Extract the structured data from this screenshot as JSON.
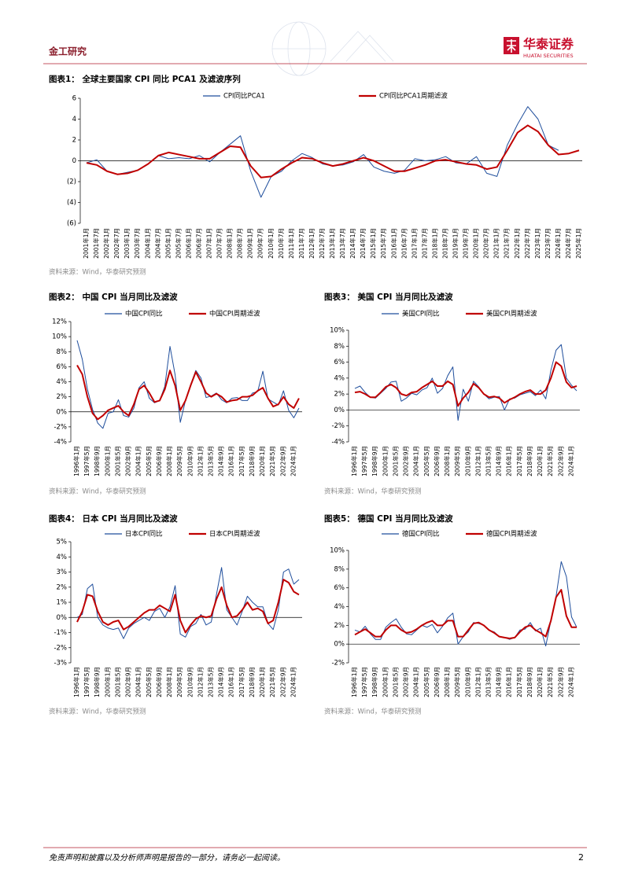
{
  "header": {
    "section": "金工研究",
    "logo_name": "华泰证券",
    "logo_sub": "HUATAI SECURITIES"
  },
  "footer": {
    "disclaimer": "免责声明和披露以及分析师声明是报告的一部分，请务必一起阅读。",
    "page": 2
  },
  "chart_data": [
    {
      "type": "line",
      "title": "图表1： 全球主要国家 CPI 同比 PCA1 及滤波序列",
      "source": "资料来源：Wind，华泰研究预测",
      "categories": [
        "2001年1月",
        "2001年7月",
        "2002年1月",
        "2002年7月",
        "2003年1月",
        "2003年7月",
        "2004年1月",
        "2004年7月",
        "2005年1月",
        "2005年7月",
        "2006年1月",
        "2006年7月",
        "2007年1月",
        "2007年7月",
        "2008年1月",
        "2008年7月",
        "2009年1月",
        "2009年7月",
        "2010年1月",
        "2010年7月",
        "2011年1月",
        "2011年7月",
        "2012年1月",
        "2012年7月",
        "2013年1月",
        "2013年7月",
        "2014年1月",
        "2014年7月",
        "2015年1月",
        "2015年7月",
        "2016年1月",
        "2016年7月",
        "2017年1月",
        "2017年7月",
        "2018年1月",
        "2018年7月",
        "2019年1月",
        "2019年7月",
        "2020年1月",
        "2020年7月",
        "2021年1月",
        "2021年7月",
        "2022年1月",
        "2022年7月",
        "2023年1月",
        "2023年7月",
        "2024年1月",
        "2024年7月",
        "2025年1月"
      ],
      "series": [
        {
          "name": "CPI同比PCA1",
          "color": "#1f4e9c",
          "values": [
            -0.2,
            0.1,
            -1.0,
            -1.3,
            -1.1,
            -0.9,
            -0.3,
            0.5,
            0.2,
            0.3,
            0.2,
            0.5,
            -0.1,
            0.8,
            1.6,
            2.4,
            -1.0,
            -3.5,
            -1.5,
            -1.0,
            0.0,
            0.7,
            0.3,
            -0.3,
            -0.5,
            -0.4,
            -0.1,
            0.6,
            -0.6,
            -1.0,
            -1.2,
            -0.9,
            0.2,
            0.0,
            0.1,
            0.4,
            -0.2,
            -0.3,
            0.4,
            -1.2,
            -1.5,
            1.5,
            3.5,
            5.2,
            4.0,
            1.5,
            1.0,
            null,
            null
          ]
        },
        {
          "name": "CPI同比PCA1周期滤波",
          "color": "#c00000",
          "values": [
            -0.2,
            -0.4,
            -1.0,
            -1.3,
            -1.2,
            -0.9,
            -0.3,
            0.5,
            0.8,
            0.6,
            0.4,
            0.2,
            0.2,
            0.8,
            1.4,
            1.3,
            -0.5,
            -1.6,
            -1.5,
            -0.8,
            -0.2,
            0.3,
            0.2,
            -0.2,
            -0.5,
            -0.3,
            0.0,
            0.3,
            0.0,
            -0.5,
            -1.0,
            -1.0,
            -0.7,
            -0.4,
            0.0,
            0.1,
            -0.1,
            -0.3,
            -0.4,
            -0.8,
            -0.6,
            1.0,
            2.7,
            3.4,
            2.8,
            1.5,
            0.6,
            0.7,
            1.0
          ]
        }
      ],
      "ylim": [
        -6,
        6
      ],
      "yticks": [
        {
          "value": -6,
          "label": "(6)"
        },
        {
          "value": -4,
          "label": "(4)"
        },
        {
          "value": -2,
          "label": "(2)"
        },
        0,
        2,
        4,
        6
      ],
      "grid": false,
      "legend": "top"
    },
    {
      "type": "line",
      "title": "图表2： 中国 CPI 当月同比及滤波",
      "source": "资料来源：Wind，华泰研究预测",
      "categories": [
        "1996年1月",
        null,
        "1997年5月",
        null,
        "1998年9月",
        null,
        "2000年1月",
        null,
        "2001年5月",
        null,
        "2002年9月",
        null,
        "2004年1月",
        null,
        "2005年5月",
        null,
        "2006年9月",
        null,
        "2008年1月",
        null,
        "2009年5月",
        null,
        "2010年9月",
        null,
        "2012年1月",
        null,
        "2013年5月",
        null,
        "2014年9月",
        null,
        "2016年1月",
        null,
        "2017年5月",
        null,
        "2018年9月",
        null,
        "2020年1月",
        null,
        "2021年5月",
        null,
        "2022年9月",
        null,
        "2024年1月",
        null
      ],
      "series": [
        {
          "name": "中国CPI同比",
          "color": "#1f4e9c",
          "values": [
            9.5,
            7.0,
            3.0,
            0.3,
            -1.5,
            -2.2,
            -0.2,
            0.0,
            1.6,
            -0.5,
            -0.7,
            0.5,
            3.2,
            4.0,
            1.8,
            1.2,
            1.5,
            3.4,
            8.7,
            4.9,
            -1.4,
            1.5,
            3.6,
            5.5,
            4.5,
            1.9,
            2.1,
            2.5,
            1.6,
            1.2,
            1.8,
            1.9,
            1.5,
            1.5,
            2.5,
            2.7,
            5.4,
            1.7,
            1.3,
            0.9,
            2.8,
            0.2,
            -0.8,
            0.5
          ]
        },
        {
          "name": "中国CPI周期滤波",
          "color": "#c00000",
          "values": [
            6.2,
            5.0,
            2.0,
            -0.2,
            -1.0,
            -0.5,
            0.2,
            0.5,
            0.8,
            0.0,
            -0.5,
            1.0,
            3.0,
            3.5,
            2.5,
            1.3,
            1.5,
            3.0,
            5.5,
            3.5,
            0.2,
            1.5,
            3.5,
            5.3,
            4.0,
            2.5,
            2.0,
            2.4,
            2.0,
            1.3,
            1.5,
            1.6,
            2.0,
            2.0,
            2.2,
            2.8,
            3.2,
            1.8,
            0.7,
            1.0,
            2.0,
            1.0,
            0.5,
            1.8
          ]
        }
      ],
      "ylim": [
        -4,
        12
      ],
      "yticks": [
        {
          "value": -4,
          "label": "-4%"
        },
        {
          "value": -2,
          "label": "-2%"
        },
        {
          "value": 0,
          "label": "0%"
        },
        {
          "value": 2,
          "label": "2%"
        },
        {
          "value": 4,
          "label": "4%"
        },
        {
          "value": 6,
          "label": "6%"
        },
        {
          "value": 8,
          "label": "8%"
        },
        {
          "value": 10,
          "label": "10%"
        },
        {
          "value": 12,
          "label": "12%"
        }
      ],
      "grid": false,
      "legend": "top"
    },
    {
      "type": "line",
      "title": "图表3： 美国 CPI 当月同比及滤波",
      "source": "资料来源：Wind，华泰研究预测",
      "categories": [
        "1996年1月",
        null,
        "1997年5月",
        null,
        "1998年9月",
        null,
        "2000年1月",
        null,
        "2001年5月",
        null,
        "2002年9月",
        null,
        "2004年1月",
        null,
        "2005年5月",
        null,
        "2006年9月",
        null,
        "2008年1月",
        null,
        "2009年5月",
        null,
        "2010年9月",
        null,
        "2012年1月",
        null,
        "2013年5月",
        null,
        "2014年9月",
        null,
        "2016年1月",
        null,
        "2017年5月",
        null,
        "2018年9月",
        null,
        "2020年1月",
        null,
        "2021年5月",
        null,
        "2022年9月",
        null,
        "2024年1月",
        null
      ],
      "series": [
        {
          "name": "美国CPI同比",
          "color": "#1f4e9c",
          "values": [
            2.7,
            3.0,
            2.2,
            1.6,
            1.5,
            2.1,
            2.7,
            3.5,
            3.6,
            1.1,
            1.5,
            2.1,
            1.9,
            2.5,
            2.8,
            4.0,
            2.1,
            2.7,
            4.3,
            5.4,
            -1.3,
            2.6,
            1.1,
            3.6,
            2.9,
            2.0,
            1.4,
            1.6,
            1.7,
            0.0,
            1.4,
            1.5,
            1.9,
            2.1,
            2.3,
            1.8,
            2.5,
            1.4,
            5.0,
            7.5,
            8.2,
            4.0,
            3.1,
            2.4
          ]
        },
        {
          "name": "美国CPI周期滤波",
          "color": "#c00000",
          "values": [
            2.2,
            2.3,
            2.0,
            1.6,
            1.6,
            2.2,
            2.9,
            3.2,
            2.8,
            2.0,
            1.8,
            2.2,
            2.3,
            2.8,
            3.2,
            3.6,
            3.0,
            3.0,
            3.6,
            3.2,
            0.5,
            1.5,
            2.2,
            3.3,
            2.8,
            2.0,
            1.6,
            1.7,
            1.5,
            0.9,
            1.3,
            1.6,
            2.0,
            2.3,
            2.5,
            2.0,
            2.0,
            2.5,
            4.0,
            6.0,
            5.5,
            3.5,
            2.8,
            3.0
          ]
        }
      ],
      "ylim": [
        -4,
        10
      ],
      "yticks": [
        {
          "value": -4,
          "label": "-4%"
        },
        {
          "value": -2,
          "label": "-2%"
        },
        {
          "value": 0,
          "label": "0%"
        },
        {
          "value": 2,
          "label": "2%"
        },
        {
          "value": 4,
          "label": "4%"
        },
        {
          "value": 6,
          "label": "6%"
        },
        {
          "value": 8,
          "label": "8%"
        },
        {
          "value": 10,
          "label": "10%"
        }
      ],
      "grid": false,
      "legend": "top"
    },
    {
      "type": "line",
      "title": "图表4： 日本 CPI 当月同比及滤波",
      "source": "资料来源：Wind，华泰研究预测",
      "categories": [
        "1996年1月",
        null,
        "1997年5月",
        null,
        "1998年9月",
        null,
        "2000年1月",
        null,
        "2001年5月",
        null,
        "2002年9月",
        null,
        "2004年1月",
        null,
        "2005年5月",
        null,
        "2006年9月",
        null,
        "2008年1月",
        null,
        "2009年5月",
        null,
        "2010年9月",
        null,
        "2012年1月",
        null,
        "2013年5月",
        null,
        "2014年9月",
        null,
        "2016年1月",
        null,
        "2017年5月",
        null,
        "2018年9月",
        null,
        "2020年1月",
        null,
        "2021年5月",
        null,
        "2022年9月",
        null,
        "2024年1月",
        null
      ],
      "series": [
        {
          "name": "日本CPI同比",
          "color": "#1f4e9c",
          "values": [
            0.0,
            0.2,
            1.9,
            2.2,
            0.0,
            -0.5,
            -0.7,
            -0.8,
            -0.7,
            -1.4,
            -0.7,
            -0.4,
            -0.2,
            0.0,
            -0.2,
            0.4,
            0.6,
            0.0,
            0.7,
            2.1,
            -1.1,
            -1.3,
            -0.6,
            -0.4,
            0.2,
            -0.5,
            -0.3,
            1.5,
            3.3,
            0.5,
            0.0,
            -0.5,
            0.4,
            1.4,
            1.0,
            0.7,
            0.7,
            -0.4,
            -0.8,
            0.5,
            3.0,
            3.2,
            2.2,
            2.5
          ]
        },
        {
          "name": "日本CPI周期滤波",
          "color": "#c00000",
          "values": [
            -0.3,
            0.4,
            1.5,
            1.4,
            0.4,
            -0.3,
            -0.5,
            -0.3,
            -0.2,
            -0.8,
            -0.6,
            -0.3,
            0.0,
            0.3,
            0.5,
            0.5,
            0.8,
            0.6,
            0.4,
            1.5,
            -0.2,
            -1.0,
            -0.5,
            -0.1,
            0.1,
            0.0,
            0.1,
            1.2,
            2.0,
            0.8,
            0.0,
            0.1,
            0.5,
            1.0,
            0.5,
            0.6,
            0.4,
            -0.4,
            -0.2,
            1.0,
            2.5,
            2.3,
            1.7,
            1.5
          ]
        }
      ],
      "ylim": [
        -3,
        5
      ],
      "yticks": [
        {
          "value": -3,
          "label": "-3%"
        },
        {
          "value": -2,
          "label": "-2%"
        },
        {
          "value": -1,
          "label": "-1%"
        },
        {
          "value": 0,
          "label": "0%"
        },
        {
          "value": 1,
          "label": "1%"
        },
        {
          "value": 2,
          "label": "2%"
        },
        {
          "value": 3,
          "label": "3%"
        },
        {
          "value": 4,
          "label": "4%"
        },
        {
          "value": 5,
          "label": "5%"
        }
      ],
      "grid": false,
      "legend": "top"
    },
    {
      "type": "line",
      "title": "图表5： 德国 CPI 当月同比及滤波",
      "source": "资料来源：Wind，华泰研究预测",
      "categories": [
        "1996年1月",
        null,
        "1997年5月",
        null,
        "1998年9月",
        null,
        "2000年1月",
        null,
        "2001年5月",
        null,
        "2002年9月",
        null,
        "2004年1月",
        null,
        "2005年5月",
        null,
        "2006年9月",
        null,
        "2008年1月",
        null,
        "2009年5月",
        null,
        "2010年9月",
        null,
        "2012年1月",
        null,
        "2013年5月",
        null,
        "2014年9月",
        null,
        "2016年1月",
        null,
        "2017年5月",
        null,
        "2018年9月",
        null,
        "2020年1月",
        null,
        "2021年5月",
        null,
        "2022年9月",
        null,
        "2024年1月",
        null
      ],
      "series": [
        {
          "name": "德国CPI同比",
          "color": "#1f4e9c",
          "values": [
            1.5,
            1.3,
            1.9,
            1.1,
            0.5,
            0.5,
            1.8,
            2.3,
            2.7,
            1.8,
            1.1,
            1.0,
            1.5,
            2.0,
            1.8,
            2.1,
            1.2,
            1.9,
            2.8,
            3.3,
            0.0,
            0.8,
            1.3,
            2.3,
            2.2,
            2.0,
            1.5,
            1.3,
            0.8,
            0.7,
            0.5,
            0.7,
            1.5,
            1.6,
            2.3,
            1.4,
            1.7,
            -0.2,
            2.5,
            5.1,
            8.8,
            7.2,
            2.9,
            1.8
          ]
        },
        {
          "name": "德国CPI周期滤波",
          "color": "#c00000",
          "values": [
            1.0,
            1.3,
            1.6,
            1.2,
            0.8,
            0.8,
            1.5,
            2.0,
            2.0,
            1.5,
            1.2,
            1.3,
            1.6,
            2.0,
            2.3,
            2.5,
            2.0,
            2.0,
            2.5,
            2.5,
            0.8,
            0.8,
            1.5,
            2.2,
            2.3,
            2.0,
            1.5,
            1.2,
            0.8,
            0.7,
            0.6,
            0.7,
            1.3,
            1.8,
            2.0,
            1.5,
            1.2,
            0.8,
            2.5,
            5.0,
            5.8,
            3.0,
            1.8,
            1.8
          ]
        }
      ],
      "ylim": [
        -2,
        10
      ],
      "yticks": [
        {
          "value": -2,
          "label": "-2%"
        },
        {
          "value": 0,
          "label": "0%"
        },
        {
          "value": 2,
          "label": "2%"
        },
        {
          "value": 4,
          "label": "4%"
        },
        {
          "value": 6,
          "label": "6%"
        },
        {
          "value": 8,
          "label": "8%"
        },
        {
          "value": 10,
          "label": "10%"
        }
      ],
      "grid": false,
      "legend": "top"
    }
  ]
}
